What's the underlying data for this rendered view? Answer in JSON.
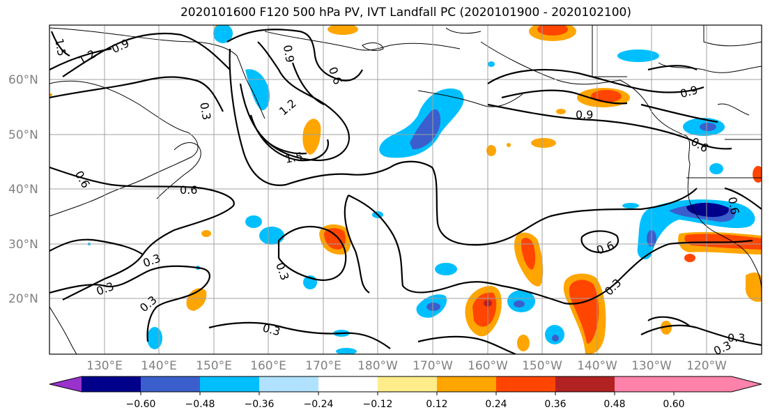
{
  "title": "2020101600 F120 500 hPa PV, IVT Landfall PC (2020101900 - 2020102100)",
  "lat_labels": [
    "60°N",
    "50°N",
    "40°N",
    "30°N",
    "20°N"
  ],
  "lon_labels": [
    "130°E",
    "140°E",
    "150°E",
    "160°E",
    "170°E",
    "180°W",
    "170°W",
    "160°W",
    "150°W",
    "140°W",
    "130°W",
    "120°W"
  ],
  "colorbar": {
    "ticks": [
      "−0.60",
      "−0.48",
      "−0.36",
      "−0.24",
      "−0.12",
      "0.12",
      "0.24",
      "0.36",
      "0.48",
      "0.60"
    ],
    "colors": [
      "#9932cc",
      "#00008b",
      "#3a5fcd",
      "#00bfff",
      "#b0e2ff",
      "#ffffff",
      "#ffec8b",
      "#ffa500",
      "#ff4500",
      "#b22222",
      "#ff82ab"
    ]
  },
  "contour_labels": [
    "1.5",
    "1.2",
    "0.9",
    "0.9",
    "0.6",
    "0.3",
    "1.2",
    "1.5",
    "0.6",
    "0.6",
    "0.3",
    "0.3",
    "0.3",
    "0.3",
    "0.3",
    "0.9",
    "0.9",
    "0.6",
    "0.3",
    "0.3",
    "0.6",
    "0.6",
    "0.3"
  ]
}
